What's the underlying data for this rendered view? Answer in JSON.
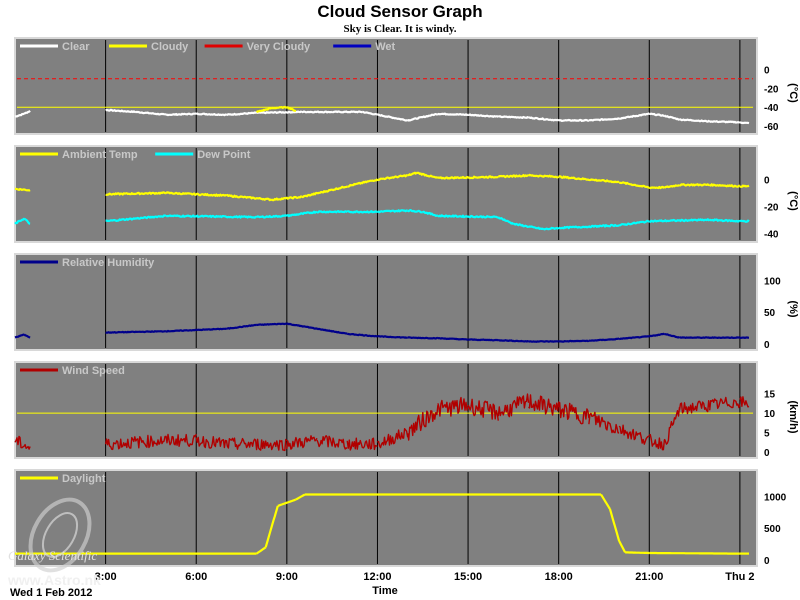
{
  "header": {
    "title": "Cloud Sensor Graph",
    "subtitle": "Sky is Clear. It is windy."
  },
  "footer": {
    "date_label": "Wed 1 Feb 2012",
    "time_label": "Time",
    "watermark_line1": "Galaxy Scientific",
    "watermark_line2": "www.Astro.nk"
  },
  "colors": {
    "panel_bg": "#808080",
    "panel_border": "#d8d8d8",
    "grid_vertical": "#000000",
    "threshold_yellow": "#ffff00",
    "threshold_red": "#ff0000",
    "clear": "#ffffff",
    "cloudy": "#ffff00",
    "very_cloudy": "#e00000",
    "wet": "#0000c0",
    "ambient": "#ffff00",
    "dew": "#00ffff",
    "humidity": "#00008b",
    "wind": "#b00000",
    "daylight": "#ffff00"
  },
  "x_axis": {
    "range_hours": [
      0,
      24.5
    ],
    "ticks": [
      {
        "h": 3,
        "label": "3:00"
      },
      {
        "h": 6,
        "label": "6:00"
      },
      {
        "h": 9,
        "label": "9:00"
      },
      {
        "h": 12,
        "label": "12:00"
      },
      {
        "h": 15,
        "label": "15:00"
      },
      {
        "h": 18,
        "label": "18:00"
      },
      {
        "h": 21,
        "label": "21:00"
      },
      {
        "h": 24,
        "label": "Thu 2"
      }
    ]
  },
  "chart_data": [
    {
      "id": "sky",
      "type": "line",
      "legend": [
        {
          "label": "Clear",
          "color": "#ffffff"
        },
        {
          "label": "Cloudy",
          "color": "#ffff00"
        },
        {
          "label": "Very Cloudy",
          "color": "#e00000"
        },
        {
          "label": "Wet",
          "color": "#0000c0"
        }
      ],
      "unit": "(°C)",
      "ylim": [
        -62,
        12
      ],
      "yticks": [
        0,
        -20,
        -40,
        -60
      ],
      "thresholds": [
        {
          "y": -10,
          "color": "#ff0000",
          "dash": true
        },
        {
          "y": -40,
          "color": "#ffff00",
          "dash": false
        }
      ],
      "series": [
        {
          "color": "#ffffff",
          "x": [
            0.0,
            0.3,
            0.5,
            3.0,
            4.0,
            5.0,
            6.0,
            7.0,
            8.0,
            9.5,
            10.5,
            11.5,
            12.0,
            13.0,
            14.0,
            15.0,
            16.0,
            17.0,
            18.0,
            19.0,
            20.0,
            21.0,
            21.5,
            22.0,
            23.0,
            24.0,
            24.3
          ],
          "y": [
            -50,
            -47,
            -44,
            -43,
            -45,
            -48,
            -47,
            -48,
            -46,
            -45,
            -45,
            -45,
            -48,
            -54,
            -47,
            -48,
            -50,
            -51,
            -54,
            -54,
            -52,
            -47,
            -49,
            -53,
            -55,
            -56,
            -57
          ]
        },
        {
          "color": "#ffff00",
          "x": [
            8.0,
            8.5,
            9.0,
            9.3
          ],
          "y": [
            -45,
            -41,
            -40,
            -44
          ]
        }
      ]
    },
    {
      "id": "temp",
      "type": "line",
      "legend": [
        {
          "label": "Ambient Temp",
          "color": "#ffff00"
        },
        {
          "label": "Dew Point",
          "color": "#00ffff"
        }
      ],
      "unit": "(°C)",
      "ylim": [
        -42,
        10
      ],
      "yticks": [
        0,
        -20,
        -40
      ],
      "thresholds": [],
      "series": [
        {
          "color": "#ffff00",
          "x": [
            0.0,
            0.5,
            3.0,
            5.0,
            7.0,
            8.5,
            9.5,
            11.0,
            12.0,
            13.0,
            13.3,
            14.0,
            16.0,
            17.0,
            18.0,
            20.0,
            21.0,
            21.5,
            22.0,
            23.0,
            24.0,
            24.3
          ],
          "y": [
            -7,
            -8,
            -11,
            -10,
            -12,
            -15,
            -13,
            -5,
            0,
            3,
            5,
            1,
            2,
            3,
            2,
            -2,
            -6,
            -6,
            -4,
            -4,
            -5,
            -5
          ]
        },
        {
          "color": "#00ffff",
          "x": [
            0.0,
            0.3,
            0.5,
            3.0,
            5.0,
            8.0,
            9.0,
            10.0,
            11.0,
            12.0,
            13.0,
            13.5,
            14.0,
            16.0,
            16.5,
            17.0,
            17.5,
            18.0,
            19.0,
            20.0,
            21.0,
            23.0,
            24.0,
            24.3
          ],
          "y": [
            -33,
            -29,
            -33,
            -31,
            -27,
            -28,
            -27,
            -24,
            -24,
            -24,
            -23,
            -24,
            -27,
            -28,
            -33,
            -35,
            -37,
            -36,
            -35,
            -34,
            -31,
            -30,
            -31,
            -31
          ]
        }
      ]
    },
    {
      "id": "humidity",
      "type": "line",
      "legend": [
        {
          "label": "Relative Humidity",
          "color": "#00008b"
        }
      ],
      "unit": "(%)",
      "ylim": [
        0,
        110
      ],
      "yticks": [
        100,
        50,
        0
      ],
      "thresholds": [],
      "series": [
        {
          "color": "#00008b",
          "x": [
            0.0,
            0.3,
            0.5,
            3.0,
            5.0,
            7.0,
            8.0,
            9.0,
            10.0,
            11.0,
            12.0,
            13.0,
            14.0,
            15.0,
            16.0,
            17.0,
            18.0,
            19.0,
            20.0,
            21.0,
            21.5,
            22.0,
            24.0,
            24.3
          ],
          "y": [
            10,
            15,
            10,
            18,
            20,
            24,
            30,
            32,
            24,
            16,
            12,
            10,
            9,
            7,
            6,
            4,
            4,
            5,
            8,
            12,
            16,
            10,
            10,
            10
          ]
        }
      ]
    },
    {
      "id": "wind",
      "type": "line",
      "legend": [
        {
          "label": "Wind Speed",
          "color": "#b00000"
        }
      ],
      "unit": "(km/h)",
      "ylim": [
        0,
        18
      ],
      "yticks": [
        15,
        10,
        5,
        0
      ],
      "thresholds": [
        {
          "y": 10,
          "color": "#ffff00",
          "dash": false
        }
      ],
      "series": [
        {
          "color": "#b00000",
          "x": [
            0.0,
            0.5,
            3.0,
            5.0,
            6.0,
            7.0,
            9.0,
            10.0,
            11.0,
            12.0,
            13.0,
            14.0,
            15.0,
            16.0,
            17.0,
            18.0,
            19.0,
            20.0,
            21.0,
            21.5,
            22.0,
            23.0,
            24.0,
            24.3
          ],
          "y": [
            3,
            1,
            2,
            3,
            3,
            2,
            2,
            3,
            2,
            2,
            5,
            11,
            12,
            10,
            13,
            11,
            9,
            6,
            3,
            2,
            11,
            12,
            13,
            12
          ]
        }
      ]
    },
    {
      "id": "daylight",
      "type": "line",
      "legend": [
        {
          "label": "Daylight",
          "color": "#ffff00"
        }
      ],
      "unit": "",
      "ylim": [
        0,
        1100
      ],
      "yticks": [
        1000,
        500,
        0
      ],
      "thresholds": [],
      "series": [
        {
          "color": "#ffff00",
          "x": [
            0.0,
            8.0,
            8.3,
            8.7,
            9.3,
            9.6,
            19.4,
            19.7,
            20.0,
            20.2,
            21.0,
            24.0,
            24.3
          ],
          "y": [
            100,
            100,
            200,
            850,
            950,
            1030,
            1030,
            800,
            300,
            120,
            110,
            100,
            100
          ]
        }
      ]
    }
  ]
}
